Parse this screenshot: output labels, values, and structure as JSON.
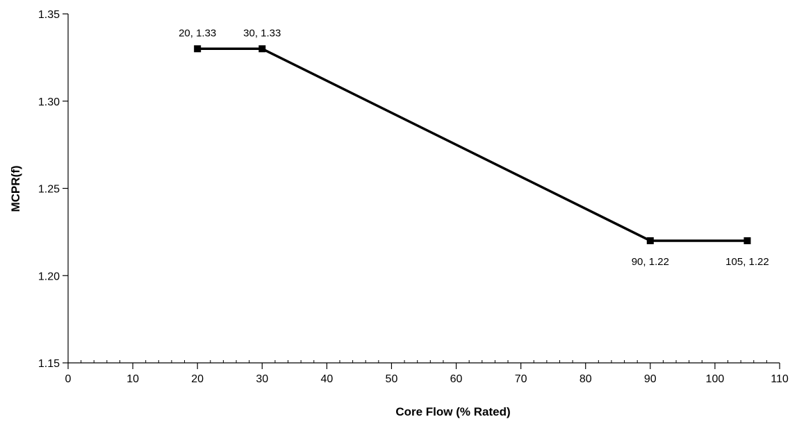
{
  "chart_data": {
    "type": "line",
    "title": "",
    "xlabel": "Core Flow (% Rated)",
    "ylabel": "MCPR(f)",
    "xlim": [
      0,
      110
    ],
    "ylim": [
      1.15,
      1.35
    ],
    "x_ticks": [
      0,
      10,
      20,
      30,
      40,
      50,
      60,
      70,
      80,
      90,
      100,
      110
    ],
    "x_tick_labels": [
      "0",
      "10",
      "20",
      "30",
      "40",
      "50",
      "60",
      "70",
      "80",
      "90",
      "100",
      "110"
    ],
    "x_minor_step": 2,
    "y_ticks": [
      1.15,
      1.2,
      1.25,
      1.3,
      1.35
    ],
    "y_tick_labels": [
      "1.15",
      "1.20",
      "1.25",
      "1.30",
      "1.35"
    ],
    "grid": false,
    "legend": "none",
    "series": [
      {
        "x": [
          20,
          30,
          90,
          105
        ],
        "values": [
          1.33,
          1.33,
          1.22,
          1.22
        ],
        "marker": "square",
        "color": "#000000",
        "point_labels": [
          "20, 1.33",
          "30, 1.33",
          "90, 1.22",
          "105, 1.22"
        ],
        "label_position": [
          "above",
          "above",
          "below",
          "below"
        ]
      }
    ]
  }
}
